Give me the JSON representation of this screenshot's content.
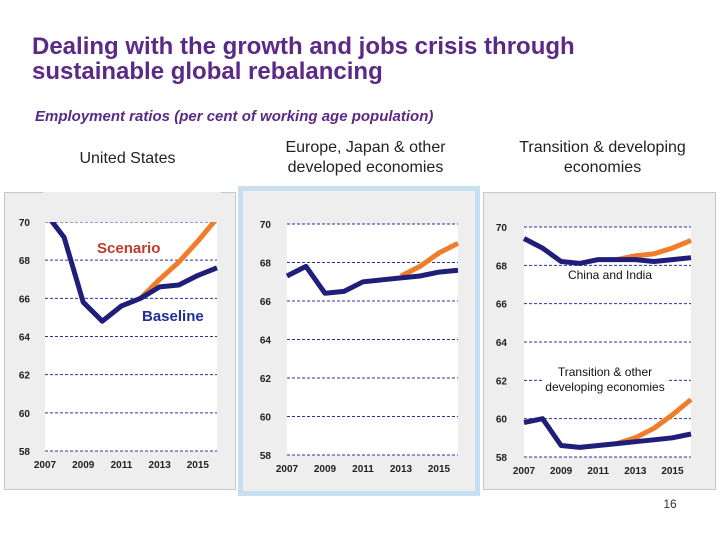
{
  "slide": {
    "title": "Dealing with the growth and jobs crisis through sustainable global rebalancing",
    "subtitle": "Employment ratios (per cent of working age population)",
    "page_number": "16"
  },
  "colors": {
    "baseline": "#1f1f7a",
    "scenario": "#f07d2a",
    "grid": "#2f2fa8"
  },
  "chart_data": [
    {
      "type": "line",
      "title": "United States",
      "x": [
        2007,
        2008,
        2009,
        2010,
        2011,
        2012,
        2013,
        2014,
        2015,
        2016
      ],
      "x_ticks": [
        "2007",
        "2009",
        "2011",
        "2013",
        "2015"
      ],
      "y_ticks": [
        "58",
        "60",
        "62",
        "64",
        "66",
        "68",
        "70"
      ],
      "ylim": [
        58,
        70
      ],
      "series": [
        {
          "name": "Baseline",
          "role": "baseline",
          "values": [
            70.5,
            69.2,
            65.8,
            64.8,
            65.6,
            66.0,
            66.6,
            66.7,
            67.2,
            67.6
          ]
        },
        {
          "name": "Scenario",
          "role": "scenario",
          "values": [
            null,
            null,
            null,
            null,
            null,
            66.0,
            67.0,
            67.9,
            69.0,
            70.2
          ]
        }
      ],
      "annotations": [
        "Scenario",
        "Baseline"
      ]
    },
    {
      "type": "line",
      "title": "Europe, Japan & other developed economies",
      "x": [
        2007,
        2008,
        2009,
        2010,
        2011,
        2012,
        2013,
        2014,
        2015,
        2016
      ],
      "x_ticks": [
        "2007",
        "2009",
        "2011",
        "2013",
        "2015"
      ],
      "y_ticks": [
        "58",
        "60",
        "62",
        "64",
        "66",
        "68",
        "70"
      ],
      "ylim": [
        58,
        70
      ],
      "series": [
        {
          "role": "baseline",
          "values": [
            67.3,
            67.8,
            66.4,
            66.5,
            67.0,
            67.1,
            67.2,
            67.3,
            67.5,
            67.6
          ]
        },
        {
          "role": "scenario",
          "values": [
            null,
            null,
            null,
            null,
            null,
            null,
            67.3,
            67.8,
            68.5,
            69.0
          ]
        }
      ],
      "annotations": []
    },
    {
      "type": "line",
      "title": "Transition & developing economies",
      "x": [
        2007,
        2008,
        2009,
        2010,
        2011,
        2012,
        2013,
        2014,
        2015,
        2016
      ],
      "x_ticks": [
        "2007",
        "2009",
        "2011",
        "2013",
        "2015"
      ],
      "y_ticks": [
        "58",
        "60",
        "62",
        "64",
        "66",
        "68",
        "70"
      ],
      "ylim": [
        58,
        70
      ],
      "series": [
        {
          "group": "China and India",
          "role": "baseline",
          "values": [
            69.4,
            68.9,
            68.2,
            68.1,
            68.3,
            68.3,
            68.3,
            68.2,
            68.3,
            68.4
          ]
        },
        {
          "group": "China and India",
          "role": "scenario",
          "values": [
            null,
            null,
            null,
            null,
            null,
            68.3,
            68.5,
            68.6,
            68.9,
            69.3
          ]
        },
        {
          "group": "Transition & other developing economies",
          "role": "baseline",
          "values": [
            59.8,
            60.0,
            58.6,
            58.5,
            58.6,
            58.7,
            58.8,
            58.9,
            59.0,
            59.2
          ]
        },
        {
          "group": "Transition & other developing economies",
          "role": "scenario",
          "values": [
            null,
            null,
            null,
            null,
            null,
            58.7,
            59.0,
            59.5,
            60.2,
            61.0
          ]
        }
      ],
      "annotations": [
        "China and India",
        "Transition & other developing economies"
      ]
    }
  ]
}
